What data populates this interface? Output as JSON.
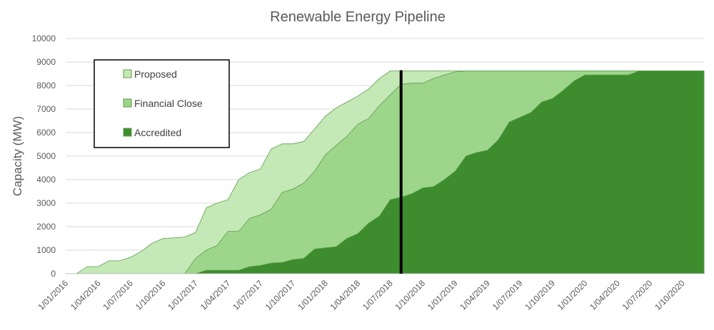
{
  "chart_data": {
    "type": "area",
    "title": "Renewable Energy Pipeline",
    "xlabel": "",
    "ylabel": "Capacity (MW)",
    "ylim": [
      0,
      10000
    ],
    "yticks": [
      0,
      1000,
      2000,
      3000,
      4000,
      5000,
      6000,
      7000,
      8000,
      9000,
      10000
    ],
    "xtick_labels": [
      "1/01/2016",
      "1/04/2016",
      "1/07/2016",
      "1/10/2016",
      "1/01/2017",
      "1/04/2017",
      "1/07/2017",
      "1/10/2017",
      "1/01/2018",
      "1/04/2018",
      "1/07/2018",
      "1/10/2018",
      "1/01/2019",
      "1/04/2019",
      "1/07/2019",
      "1/10/2019",
      "1/01/2020",
      "1/04/2020",
      "1/07/2020",
      "1/10/2020"
    ],
    "x_start": "1/01/2016",
    "x_end": "1/12/2020",
    "stacked": false,
    "grid": true,
    "legend_position": "top-left",
    "marker_line": {
      "x": "1/08/2018"
    },
    "series": [
      {
        "name": "Proposed",
        "color": "#c5e8b7",
        "points": [
          [
            "1/01/2016",
            0
          ],
          [
            "1/02/2016",
            0
          ],
          [
            "1/03/2016",
            300
          ],
          [
            "1/04/2016",
            300
          ],
          [
            "1/05/2016",
            550
          ],
          [
            "1/06/2016",
            550
          ],
          [
            "1/07/2016",
            700
          ],
          [
            "1/08/2016",
            950
          ],
          [
            "1/09/2016",
            1300
          ],
          [
            "1/10/2016",
            1500
          ],
          [
            "1/11/2016",
            1520
          ],
          [
            "1/12/2016",
            1560
          ],
          [
            "1/01/2017",
            1750
          ],
          [
            "1/02/2017",
            2800
          ],
          [
            "1/03/2017",
            3000
          ],
          [
            "1/04/2017",
            3150
          ],
          [
            "1/05/2017",
            4000
          ],
          [
            "1/06/2017",
            4300
          ],
          [
            "1/07/2017",
            4450
          ],
          [
            "1/08/2017",
            5300
          ],
          [
            "1/09/2017",
            5520
          ],
          [
            "1/10/2017",
            5520
          ],
          [
            "1/11/2017",
            5620
          ],
          [
            "1/12/2017",
            6150
          ],
          [
            "1/01/2018",
            6700
          ],
          [
            "1/02/2018",
            7050
          ],
          [
            "1/03/2018",
            7300
          ],
          [
            "1/04/2018",
            7550
          ],
          [
            "1/05/2018",
            7850
          ],
          [
            "1/06/2018",
            8300
          ],
          [
            "1/07/2018",
            8620
          ],
          [
            "1/12/2020",
            8620
          ]
        ]
      },
      {
        "name": "Financial Close",
        "color": "#9dd68a",
        "points": [
          [
            "1/01/2016",
            0
          ],
          [
            "1/12/2016",
            0
          ],
          [
            "1/01/2017",
            650
          ],
          [
            "1/02/2017",
            1000
          ],
          [
            "1/03/2017",
            1200
          ],
          [
            "1/04/2017",
            1800
          ],
          [
            "1/05/2017",
            1800
          ],
          [
            "1/06/2017",
            2350
          ],
          [
            "1/07/2017",
            2500
          ],
          [
            "1/08/2017",
            2750
          ],
          [
            "1/09/2017",
            3450
          ],
          [
            "1/10/2017",
            3600
          ],
          [
            "1/11/2017",
            3850
          ],
          [
            "1/12/2017",
            4350
          ],
          [
            "1/01/2018",
            5050
          ],
          [
            "1/02/2018",
            5450
          ],
          [
            "1/03/2018",
            5850
          ],
          [
            "1/04/2018",
            6350
          ],
          [
            "1/05/2018",
            6600
          ],
          [
            "1/06/2018",
            7150
          ],
          [
            "1/07/2018",
            7600
          ],
          [
            "1/08/2018",
            8050
          ],
          [
            "1/09/2018",
            8100
          ],
          [
            "1/10/2018",
            8100
          ],
          [
            "1/11/2018",
            8300
          ],
          [
            "1/12/2018",
            8450
          ],
          [
            "1/01/2019",
            8580
          ],
          [
            "1/02/2019",
            8620
          ],
          [
            "1/12/2020",
            8620
          ]
        ]
      },
      {
        "name": "Accredited",
        "color": "#3d8c2e",
        "points": [
          [
            "1/01/2016",
            0
          ],
          [
            "1/01/2017",
            0
          ],
          [
            "1/02/2017",
            150
          ],
          [
            "1/03/2017",
            150
          ],
          [
            "1/04/2017",
            150
          ],
          [
            "1/05/2017",
            150
          ],
          [
            "1/06/2017",
            300
          ],
          [
            "1/07/2017",
            350
          ],
          [
            "1/08/2017",
            450
          ],
          [
            "1/09/2017",
            480
          ],
          [
            "1/10/2017",
            600
          ],
          [
            "1/11/2017",
            650
          ],
          [
            "1/12/2017",
            1050
          ],
          [
            "1/01/2018",
            1100
          ],
          [
            "1/02/2018",
            1150
          ],
          [
            "1/03/2018",
            1500
          ],
          [
            "1/04/2018",
            1700
          ],
          [
            "1/05/2018",
            2150
          ],
          [
            "1/06/2018",
            2450
          ],
          [
            "1/07/2018",
            3150
          ],
          [
            "1/08/2018",
            3250
          ],
          [
            "1/09/2018",
            3400
          ],
          [
            "1/10/2018",
            3650
          ],
          [
            "1/11/2018",
            3700
          ],
          [
            "1/12/2018",
            4000
          ],
          [
            "1/01/2019",
            4350
          ],
          [
            "1/02/2019",
            5000
          ],
          [
            "1/03/2019",
            5150
          ],
          [
            "1/04/2019",
            5250
          ],
          [
            "1/05/2019",
            5700
          ],
          [
            "1/06/2019",
            6450
          ],
          [
            "1/07/2019",
            6650
          ],
          [
            "1/08/2019",
            6850
          ],
          [
            "1/09/2019",
            7300
          ],
          [
            "1/10/2019",
            7450
          ],
          [
            "1/11/2019",
            7800
          ],
          [
            "1/12/2019",
            8200
          ],
          [
            "1/01/2020",
            8450
          ],
          [
            "1/02/2020",
            8450
          ],
          [
            "1/03/2020",
            8450
          ],
          [
            "1/04/2020",
            8450
          ],
          [
            "1/05/2020",
            8450
          ],
          [
            "1/06/2020",
            8620
          ],
          [
            "1/12/2020",
            8620
          ]
        ]
      }
    ]
  }
}
